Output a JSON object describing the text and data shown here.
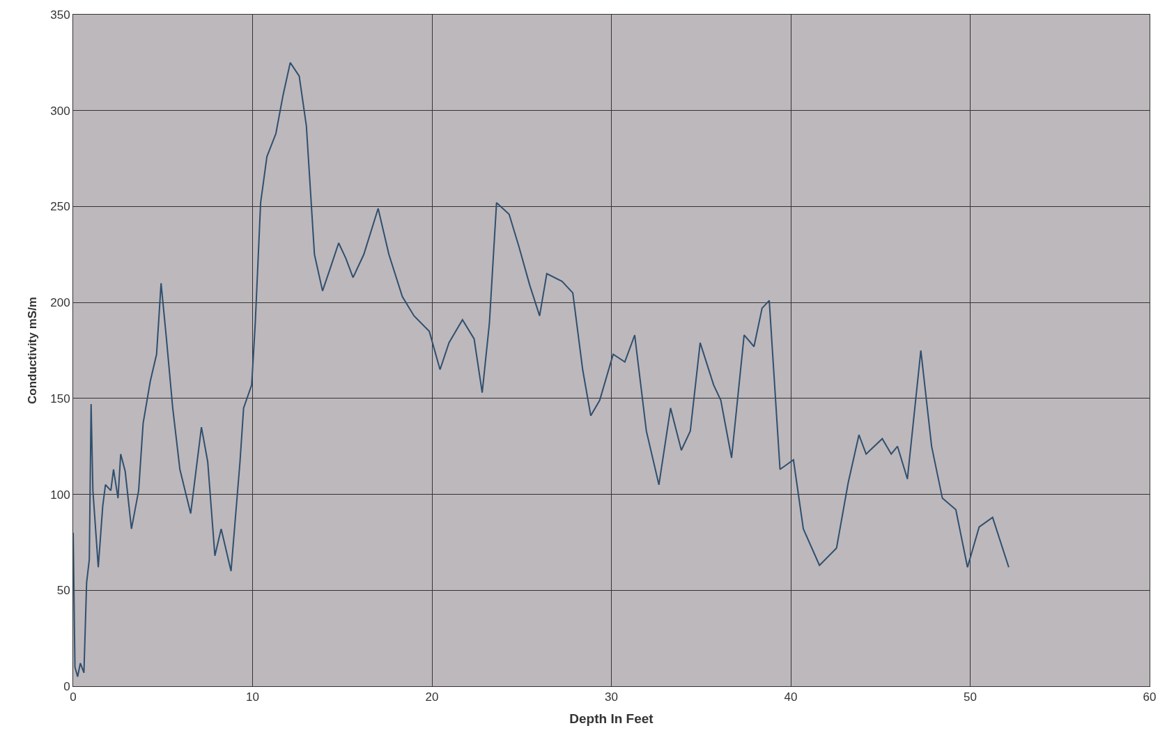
{
  "chart_data": {
    "type": "line",
    "xlabel": "Depth In Feet",
    "ylabel": "Conductivity mS/m",
    "xlim": [
      0,
      60
    ],
    "xticks": [
      0,
      10,
      20,
      30,
      40,
      50,
      60
    ],
    "ylim": [
      0,
      350
    ],
    "yticks": [
      0,
      50,
      100,
      150,
      200,
      250,
      300,
      350
    ],
    "grid": true,
    "marker": "none",
    "line_style": "solid",
    "series": [
      {
        "color": "#2f4f6e",
        "x": [
          0,
          0.1,
          0.25,
          0.4,
          0.6,
          0.75,
          0.9,
          1.0,
          1.1,
          1.4,
          1.65,
          1.8,
          2.1,
          2.25,
          2.5,
          2.65,
          2.9,
          3.25,
          3.65,
          3.9,
          4.3,
          4.65,
          4.9,
          5.2,
          5.55,
          5.95,
          6.55,
          7.15,
          7.5,
          7.9,
          8.25,
          8.8,
          9.3,
          9.5,
          9.95,
          10.15,
          10.45,
          10.8,
          11.3,
          11.7,
          12.1,
          12.6,
          13.0,
          13.45,
          13.9,
          14.3,
          14.8,
          15.2,
          15.6,
          16.2,
          17.0,
          17.6,
          18.35,
          19.0,
          19.85,
          20.45,
          20.95,
          21.7,
          22.35,
          22.8,
          23.2,
          23.6,
          24.3,
          24.85,
          25.45,
          26.0,
          26.4,
          27.25,
          27.85,
          28.4,
          28.85,
          29.35,
          30.1,
          30.75,
          31.3,
          31.95,
          32.65,
          33.3,
          33.9,
          34.4,
          34.95,
          35.7,
          36.1,
          36.7,
          37.4,
          37.95,
          38.4,
          38.8,
          39.4,
          40.15,
          40.7,
          41.6,
          42.55,
          43.2,
          43.8,
          44.2,
          45.1,
          45.6,
          45.95,
          46.5,
          47.25,
          47.85,
          48.45,
          49.2,
          49.85,
          50.5,
          51.25,
          52.15
        ],
        "values": [
          80,
          10,
          5,
          12,
          7,
          54,
          66,
          147,
          102,
          62,
          94,
          105,
          102,
          113,
          98,
          121,
          112,
          82,
          102,
          137,
          159,
          173,
          210,
          181,
          145,
          113,
          90,
          135,
          117,
          68,
          82,
          60,
          117,
          145,
          157,
          189,
          252,
          276,
          288,
          308,
          325,
          318,
          292,
          225,
          206,
          217,
          231,
          223,
          213,
          225,
          249,
          225,
          203,
          193,
          185,
          165,
          179,
          191,
          181,
          153,
          189,
          252,
          246,
          229,
          209,
          193,
          215,
          211,
          205,
          165,
          141,
          149,
          173,
          169,
          183,
          133,
          105,
          145,
          123,
          133,
          179,
          157,
          149,
          119,
          183,
          177,
          197,
          201,
          113,
          118,
          82,
          63,
          72,
          106,
          131,
          121,
          129,
          121,
          125,
          108,
          175,
          125,
          98,
          92,
          62,
          83,
          88,
          62
        ]
      }
    ]
  }
}
